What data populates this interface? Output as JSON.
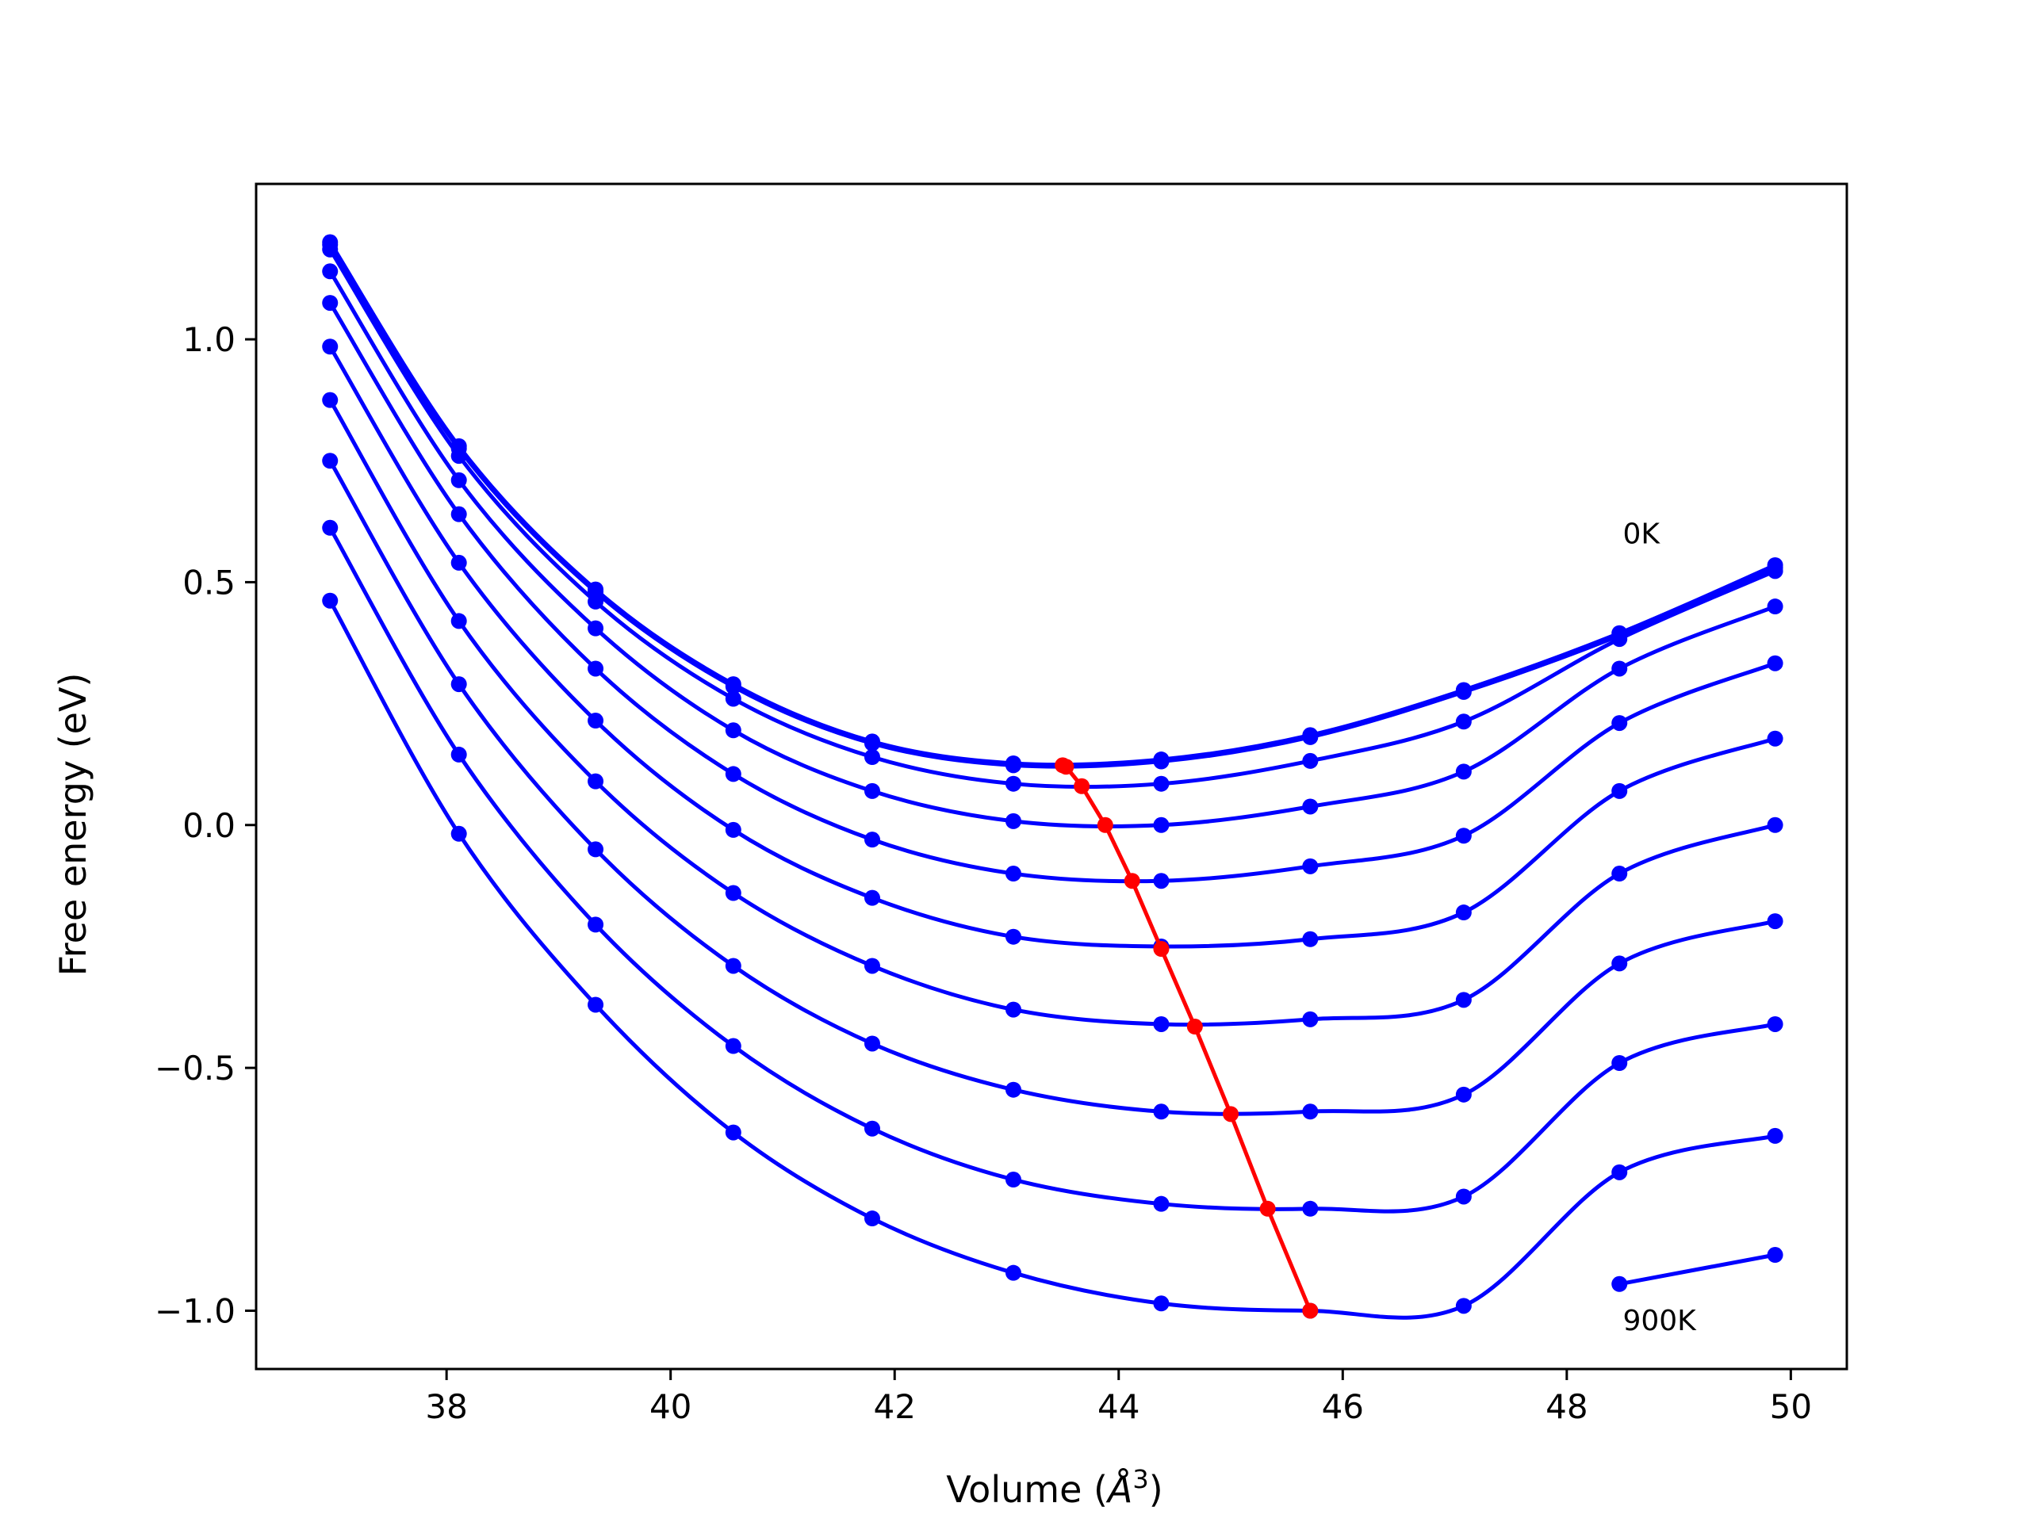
{
  "chart_data": {
    "type": "line",
    "title": "",
    "xlabel_prefix": "Volume (",
    "xlabel_symbol": "Å",
    "xlabel_exp": "3",
    "xlabel_suffix": ")",
    "ylabel": "Free energy (eV)",
    "xlim": [
      36.3,
      50.5
    ],
    "ylim": [
      -1.12,
      1.32
    ],
    "xticks": [
      38,
      40,
      42,
      44,
      46,
      48,
      50
    ],
    "xtick_labels": [
      "38",
      "40",
      "42",
      "44",
      "46",
      "48",
      "50"
    ],
    "yticks": [
      -1.0,
      -0.5,
      0.0,
      0.5,
      1.0
    ],
    "ytick_labels": [
      "−1.0",
      "−0.5",
      "0.0",
      "0.5",
      "1.0"
    ],
    "grid": false,
    "colors": {
      "isotherm": "#0000ff",
      "minimum": "#ff0000"
    },
    "annotations": [
      {
        "text": "0K",
        "x": 48.5,
        "y": 0.58
      },
      {
        "text": "900K",
        "x": 48.5,
        "y": -1.04
      }
    ],
    "volumes": [
      36.96,
      38.11,
      39.33,
      40.56,
      41.8,
      43.06,
      44.38,
      45.71,
      47.08,
      48.47,
      49.86
    ],
    "series": [
      {
        "values": [
          1.2,
          0.78,
          0.485,
          0.29,
          0.172,
          0.127,
          0.135,
          0.185,
          0.278,
          0.395,
          0.535
        ]
      },
      {
        "values": [
          1.195,
          0.775,
          0.48,
          0.285,
          0.168,
          0.123,
          0.131,
          0.181,
          0.274,
          0.39,
          0.53
        ]
      },
      {
        "values": [
          1.185,
          0.76,
          0.46,
          0.26,
          0.14,
          0.085,
          0.085,
          0.132,
          0.213,
          0.383,
          0.523
        ]
      },
      {
        "values": [
          1.14,
          0.71,
          0.405,
          0.195,
          0.07,
          0.008,
          0.0,
          0.038,
          0.11,
          0.322,
          0.45
        ]
      },
      {
        "values": [
          1.075,
          0.64,
          0.322,
          0.105,
          -0.03,
          -0.1,
          -0.115,
          -0.085,
          -0.022,
          0.21,
          0.333
        ]
      },
      {
        "values": [
          0.985,
          0.54,
          0.215,
          -0.01,
          -0.15,
          -0.23,
          -0.25,
          -0.235,
          -0.18,
          0.07,
          0.178
        ]
      },
      {
        "values": [
          0.875,
          0.42,
          0.09,
          -0.14,
          -0.29,
          -0.38,
          -0.41,
          -0.4,
          -0.36,
          -0.1,
          0.0
        ]
      },
      {
        "values": [
          0.75,
          0.29,
          -0.05,
          -0.29,
          -0.45,
          -0.545,
          -0.59,
          -0.59,
          -0.555,
          -0.285,
          -0.198
        ]
      },
      {
        "values": [
          0.612,
          0.145,
          -0.205,
          -0.455,
          -0.625,
          -0.73,
          -0.78,
          -0.79,
          -0.765,
          -0.49,
          -0.41
        ]
      },
      {
        "values": [
          0.462,
          -0.018,
          -0.37,
          -0.633,
          -0.81,
          -0.922,
          -0.985,
          -1.0,
          -0.99,
          -0.715,
          -0.64
        ]
      },
      {
        "values": [
          null,
          null,
          null,
          null,
          null,
          null,
          null,
          null,
          null,
          -0.945,
          -0.885
        ]
      }
    ],
    "minimum_points": {
      "x": [
        43.5,
        43.53,
        43.67,
        43.88,
        44.12,
        44.38,
        44.68,
        45.0,
        45.33,
        45.71
      ],
      "y": [
        0.123,
        0.12,
        0.08,
        0.0,
        -0.115,
        -0.255,
        -0.415,
        -0.595,
        -0.79,
        -1.0
      ]
    }
  }
}
